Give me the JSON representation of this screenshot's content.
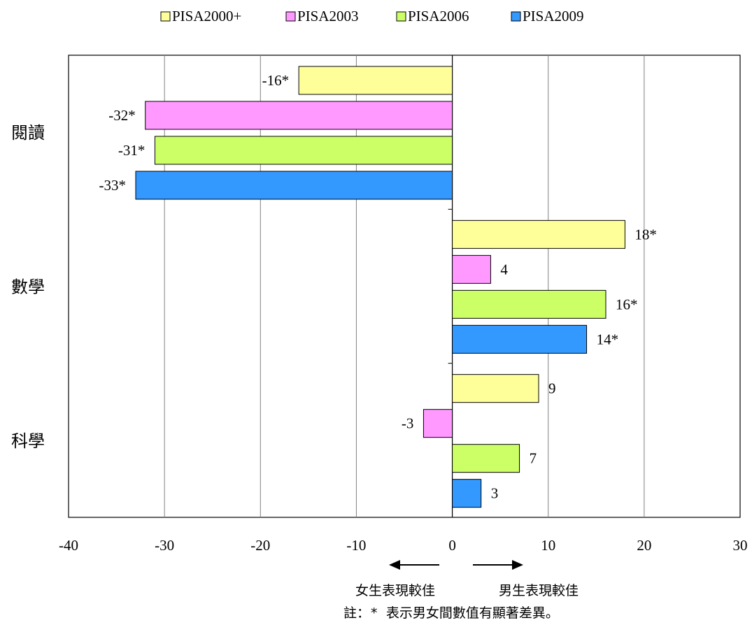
{
  "chart_data": {
    "type": "bar",
    "orientation": "horizontal",
    "categories": [
      "閱讀",
      "數學",
      "科學"
    ],
    "series": [
      {
        "name": "PISA2000+",
        "color": "#ffff99",
        "values": [
          -16,
          18,
          9
        ],
        "labels": [
          "-16*",
          "18*",
          "9"
        ]
      },
      {
        "name": "PISA2003",
        "color": "#ff99ff",
        "values": [
          -32,
          4,
          -3
        ],
        "labels": [
          "-32*",
          "4",
          "-3"
        ]
      },
      {
        "name": "PISA2006",
        "color": "#ccff66",
        "values": [
          -31,
          16,
          7
        ],
        "labels": [
          "-31*",
          "16*",
          "7"
        ]
      },
      {
        "name": "PISA2009",
        "color": "#3399ff",
        "values": [
          -33,
          14,
          3
        ],
        "labels": [
          "-33*",
          "14*",
          "3"
        ]
      }
    ],
    "xlim": [
      -40,
      30
    ],
    "xticks": [
      "-40",
      "-30",
      "-20",
      "-10",
      "0",
      "10",
      "20",
      "30"
    ],
    "grid": true,
    "legend_position": "top",
    "annotations": {
      "left_arrow_label": "女生表現較佳",
      "right_arrow_label": "男生表現較佳",
      "note": "註：* 表示男女間數值有顯著差異。"
    }
  }
}
